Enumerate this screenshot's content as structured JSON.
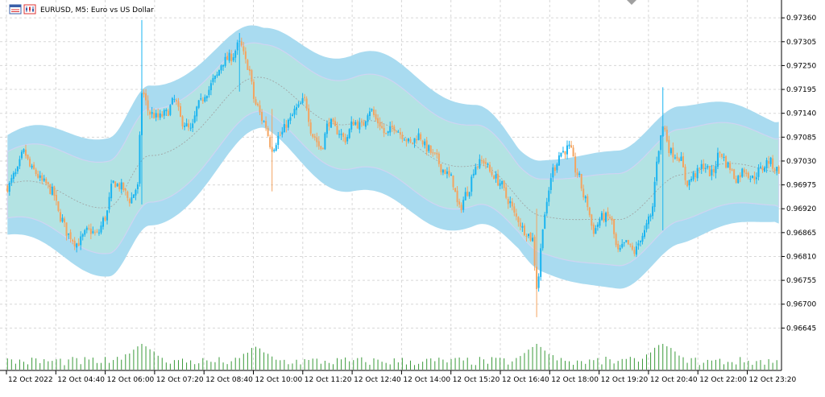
{
  "window": {
    "title": "EURUSD, M5:  Euro vs US Dollar",
    "symbol": "EURUSD",
    "timeframe": "M5",
    "description": "Euro vs US Dollar"
  },
  "colors": {
    "bull": "#1ab4f0",
    "bear": "#f4a460",
    "outer_band": "#a9dbf0",
    "inner_band": "#b3e3e3",
    "inner_band_edge": "#cfd4f2",
    "mid_line": "#a0a0a0",
    "volume": "#3a9a3a",
    "grid": "#d7d7d7",
    "axis": "#000000",
    "background": "#ffffff"
  },
  "icons": [
    "chart-window-icon",
    "chart-type-icon"
  ],
  "chart_data": {
    "type": "candlestick",
    "title": "EURUSD, M5:  Euro vs US Dollar",
    "ylim": [
      0.9659,
      0.9739
    ],
    "grid": true,
    "price_ticks": [
      "0.97360",
      "0.97305",
      "0.97250",
      "0.97195",
      "0.97140",
      "0.97085",
      "0.97030",
      "0.96975",
      "0.96920",
      "0.96865",
      "0.96810",
      "0.96755",
      "0.96700",
      "0.96645"
    ],
    "time_ticks": [
      "12 Oct 2022",
      "12 Oct 04:40",
      "12 Oct 06:00",
      "12 Oct 07:20",
      "12 Oct 08:40",
      "12 Oct 10:00",
      "12 Oct 11:20",
      "12 Oct 12:40",
      "12 Oct 14:00",
      "12 Oct 15:20",
      "12 Oct 16:40",
      "12 Oct 18:00",
      "12 Oct 19:20",
      "12 Oct 20:40",
      "12 Oct 22:00",
      "12 Oct 23:20"
    ],
    "close_path": [
      [
        0,
        0.9697
      ],
      [
        4,
        0.97
      ],
      [
        8,
        0.9705
      ],
      [
        12,
        0.9701
      ],
      [
        18,
        0.9698
      ],
      [
        22,
        0.9696
      ],
      [
        26,
        0.969
      ],
      [
        30,
        0.9686
      ],
      [
        34,
        0.9684
      ],
      [
        40,
        0.9687
      ],
      [
        44,
        0.9686
      ],
      [
        48,
        0.969
      ],
      [
        52,
        0.9698
      ],
      [
        56,
        0.9697
      ],
      [
        60,
        0.9694
      ],
      [
        64,
        0.9697
      ],
      [
        66,
        0.9719
      ],
      [
        70,
        0.9714
      ],
      [
        74,
        0.9713
      ],
      [
        78,
        0.9714
      ],
      [
        82,
        0.9717
      ],
      [
        86,
        0.9712
      ],
      [
        90,
        0.971
      ],
      [
        94,
        0.9716
      ],
      [
        98,
        0.9719
      ],
      [
        102,
        0.9722
      ],
      [
        106,
        0.9726
      ],
      [
        110,
        0.9727
      ],
      [
        114,
        0.973
      ],
      [
        118,
        0.9725
      ],
      [
        122,
        0.9716
      ],
      [
        126,
        0.9712
      ],
      [
        130,
        0.9706
      ],
      [
        134,
        0.9709
      ],
      [
        138,
        0.9712
      ],
      [
        142,
        0.9715
      ],
      [
        146,
        0.9717
      ],
      [
        150,
        0.9709
      ],
      [
        154,
        0.9706
      ],
      [
        158,
        0.9712
      ],
      [
        162,
        0.971
      ],
      [
        166,
        0.9708
      ],
      [
        170,
        0.9712
      ],
      [
        174,
        0.9711
      ],
      [
        178,
        0.9715
      ],
      [
        182,
        0.9712
      ],
      [
        186,
        0.9709
      ],
      [
        190,
        0.9711
      ],
      [
        194,
        0.9709
      ],
      [
        198,
        0.9707
      ],
      [
        202,
        0.9709
      ],
      [
        206,
        0.9706
      ],
      [
        210,
        0.9704
      ],
      [
        214,
        0.9701
      ],
      [
        218,
        0.9699
      ],
      [
        222,
        0.9692
      ],
      [
        226,
        0.9696
      ],
      [
        230,
        0.9702
      ],
      [
        234,
        0.9703
      ],
      [
        238,
        0.97
      ],
      [
        242,
        0.9698
      ],
      [
        246,
        0.9694
      ],
      [
        250,
        0.969
      ],
      [
        254,
        0.9687
      ],
      [
        258,
        0.9685
      ],
      [
        260,
        0.9674
      ],
      [
        264,
        0.9691
      ],
      [
        268,
        0.9701
      ],
      [
        272,
        0.9705
      ],
      [
        276,
        0.9706
      ],
      [
        280,
        0.97
      ],
      [
        284,
        0.9694
      ],
      [
        288,
        0.9687
      ],
      [
        292,
        0.969
      ],
      [
        296,
        0.969
      ],
      [
        300,
        0.9682
      ],
      [
        304,
        0.9684
      ],
      [
        308,
        0.9682
      ],
      [
        312,
        0.9686
      ],
      [
        316,
        0.969
      ],
      [
        320,
        0.9706
      ],
      [
        322,
        0.9711
      ],
      [
        326,
        0.9705
      ],
      [
        330,
        0.9704
      ],
      [
        334,
        0.9698
      ],
      [
        338,
        0.97
      ],
      [
        342,
        0.9702
      ],
      [
        346,
        0.97
      ],
      [
        350,
        0.9705
      ],
      [
        354,
        0.9702
      ],
      [
        358,
        0.9699
      ],
      [
        362,
        0.9701
      ],
      [
        366,
        0.9699
      ],
      [
        370,
        0.9701
      ],
      [
        374,
        0.9703
      ],
      [
        378,
        0.9701
      ]
    ],
    "spike_candles": [
      {
        "i": 66,
        "high": 0.97355,
        "low": 0.9693
      },
      {
        "i": 114,
        "high": 0.97325,
        "low": 0.9719
      },
      {
        "i": 130,
        "high": 0.9715,
        "low": 0.9696
      },
      {
        "i": 260,
        "high": 0.9692,
        "low": 0.9667
      },
      {
        "i": 322,
        "high": 0.972,
        "low": 0.9687
      }
    ],
    "bands": {
      "mid": [
        [
          0,
          0.96975
        ],
        [
          50,
          0.96925
        ],
        [
          70,
          0.9703
        ],
        [
          120,
          0.9722
        ],
        [
          170,
          0.9711
        ],
        [
          230,
          0.9702
        ],
        [
          262,
          0.9692
        ],
        [
          300,
          0.9688
        ],
        [
          330,
          0.97
        ],
        [
          378,
          0.9702
        ]
      ],
      "outer_width": 0.00135,
      "inner_width": 0.0009
    },
    "volume": {
      "baseline": 0.9659,
      "base_level": 0.15,
      "spikes": [
        {
          "i": 66,
          "v": 1.0
        },
        {
          "i": 122,
          "v": 0.85
        },
        {
          "i": 260,
          "v": 0.95
        },
        {
          "i": 322,
          "v": 1.0
        }
      ]
    }
  }
}
